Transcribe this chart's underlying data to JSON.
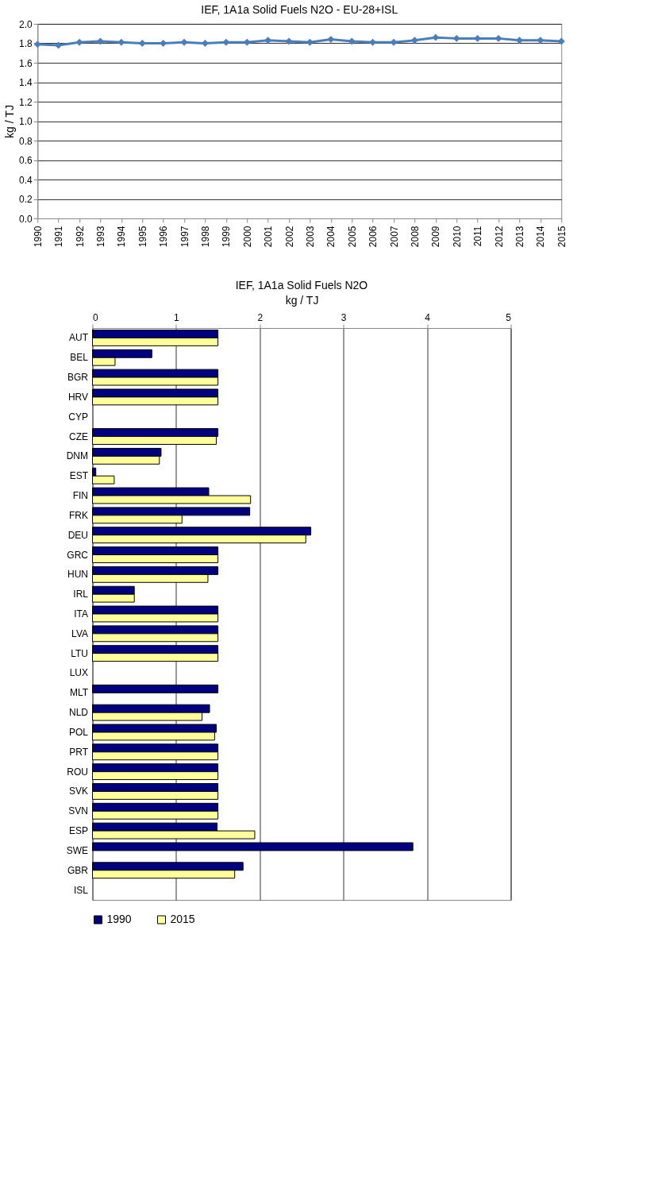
{
  "chart_data": [
    {
      "type": "line",
      "title": "IEF, 1A1a Solid Fuels N2O - EU-28+ISL",
      "ylabel": "kg / TJ",
      "categories": [
        "1990",
        "1991",
        "1992",
        "1993",
        "1994",
        "1995",
        "1996",
        "1997",
        "1998",
        "1999",
        "2000",
        "2001",
        "2002",
        "2003",
        "2004",
        "2005",
        "2006",
        "2007",
        "2008",
        "2009",
        "2010",
        "2011",
        "2012",
        "2013",
        "2014",
        "2015"
      ],
      "series": [
        {
          "color": "#4a7ebb",
          "values": [
            1.79,
            1.78,
            1.81,
            1.82,
            1.81,
            1.8,
            1.8,
            1.81,
            1.8,
            1.81,
            1.81,
            1.83,
            1.82,
            1.81,
            1.84,
            1.82,
            1.81,
            1.81,
            1.83,
            1.86,
            1.85,
            1.85,
            1.85,
            1.83,
            1.83,
            1.82
          ]
        }
      ],
      "ylim": [
        0,
        2
      ],
      "yticks": [
        {
          "value": 0,
          "label": "0.0"
        },
        {
          "value": 0.2,
          "label": "0.2"
        },
        {
          "value": 0.4,
          "label": "0.4"
        },
        {
          "value": 0.6,
          "label": "0.6"
        },
        {
          "value": 0.8,
          "label": "0.8"
        },
        {
          "value": 1,
          "label": "1.0"
        },
        {
          "value": 1.2,
          "label": "1.2"
        },
        {
          "value": 1.4,
          "label": "1.4"
        },
        {
          "value": 1.6,
          "label": "1.6"
        },
        {
          "value": 1.8,
          "label": "1.8"
        },
        {
          "value": 2,
          "label": "2.0"
        }
      ],
      "grid": "y",
      "marker": "diamond",
      "line_style": "solid",
      "legend": false
    },
    {
      "type": "bar",
      "orientation": "horizontal",
      "title": "IEF, 1A1a Solid Fuels N2O",
      "xlabel": "kg / TJ",
      "categories": [
        "AUT",
        "BEL",
        "BGR",
        "HRV",
        "CYP",
        "CZE",
        "DNM",
        "EST",
        "FIN",
        "FRK",
        "DEU",
        "GRC",
        "HUN",
        "IRL",
        "ITA",
        "LVA",
        "LTU",
        "LUX",
        "MLT",
        "NLD",
        "POL",
        "PRT",
        "ROU",
        "SVK",
        "SVN",
        "ESP",
        "SWE",
        "GBR",
        "ISL"
      ],
      "series": [
        {
          "name": "1990",
          "color": "#000080",
          "values": [
            1.5,
            0.71,
            1.5,
            1.5,
            null,
            1.5,
            0.82,
            0.04,
            1.39,
            1.88,
            2.61,
            1.5,
            1.5,
            0.5,
            1.5,
            1.5,
            1.5,
            null,
            1.5,
            1.4,
            1.48,
            1.5,
            1.5,
            1.5,
            1.5,
            1.49,
            3.83,
            1.8,
            null
          ]
        },
        {
          "name": "2015",
          "color": "#ffff99",
          "values": [
            1.5,
            0.27,
            1.5,
            1.5,
            null,
            1.48,
            0.8,
            0.26,
            1.89,
            1.07,
            2.55,
            1.5,
            1.38,
            0.5,
            1.5,
            1.5,
            1.5,
            null,
            null,
            1.31,
            1.46,
            1.5,
            1.5,
            1.5,
            1.5,
            1.94,
            null,
            1.7,
            null
          ]
        }
      ],
      "xlim": [
        0,
        5
      ],
      "xticks": [
        0,
        1,
        2,
        3,
        4,
        5
      ],
      "grid": "x",
      "legend": "bottom"
    }
  ]
}
